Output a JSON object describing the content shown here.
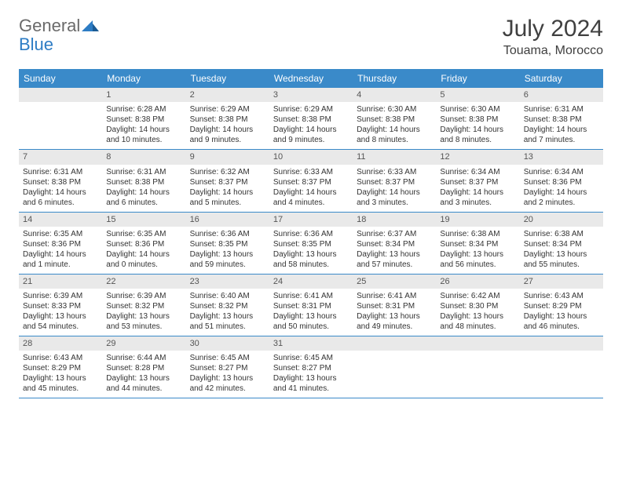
{
  "logo": {
    "text1": "General",
    "text2": "Blue"
  },
  "month_title": "July 2024",
  "location": "Touama, Morocco",
  "colors": {
    "header_bg": "#3a8ac9",
    "header_text": "#ffffff",
    "daynum_bg": "#e9e9e9",
    "border": "#3a8ac9",
    "logo_gray": "#6a6a6a",
    "logo_blue": "#2d7cc4"
  },
  "day_headers": [
    "Sunday",
    "Monday",
    "Tuesday",
    "Wednesday",
    "Thursday",
    "Friday",
    "Saturday"
  ],
  "weeks": [
    [
      {
        "num": "",
        "sunrise": "",
        "sunset": "",
        "daylight": ""
      },
      {
        "num": "1",
        "sunrise": "Sunrise: 6:28 AM",
        "sunset": "Sunset: 8:38 PM",
        "daylight": "Daylight: 14 hours and 10 minutes."
      },
      {
        "num": "2",
        "sunrise": "Sunrise: 6:29 AM",
        "sunset": "Sunset: 8:38 PM",
        "daylight": "Daylight: 14 hours and 9 minutes."
      },
      {
        "num": "3",
        "sunrise": "Sunrise: 6:29 AM",
        "sunset": "Sunset: 8:38 PM",
        "daylight": "Daylight: 14 hours and 9 minutes."
      },
      {
        "num": "4",
        "sunrise": "Sunrise: 6:30 AM",
        "sunset": "Sunset: 8:38 PM",
        "daylight": "Daylight: 14 hours and 8 minutes."
      },
      {
        "num": "5",
        "sunrise": "Sunrise: 6:30 AM",
        "sunset": "Sunset: 8:38 PM",
        "daylight": "Daylight: 14 hours and 8 minutes."
      },
      {
        "num": "6",
        "sunrise": "Sunrise: 6:31 AM",
        "sunset": "Sunset: 8:38 PM",
        "daylight": "Daylight: 14 hours and 7 minutes."
      }
    ],
    [
      {
        "num": "7",
        "sunrise": "Sunrise: 6:31 AM",
        "sunset": "Sunset: 8:38 PM",
        "daylight": "Daylight: 14 hours and 6 minutes."
      },
      {
        "num": "8",
        "sunrise": "Sunrise: 6:31 AM",
        "sunset": "Sunset: 8:38 PM",
        "daylight": "Daylight: 14 hours and 6 minutes."
      },
      {
        "num": "9",
        "sunrise": "Sunrise: 6:32 AM",
        "sunset": "Sunset: 8:37 PM",
        "daylight": "Daylight: 14 hours and 5 minutes."
      },
      {
        "num": "10",
        "sunrise": "Sunrise: 6:33 AM",
        "sunset": "Sunset: 8:37 PM",
        "daylight": "Daylight: 14 hours and 4 minutes."
      },
      {
        "num": "11",
        "sunrise": "Sunrise: 6:33 AM",
        "sunset": "Sunset: 8:37 PM",
        "daylight": "Daylight: 14 hours and 3 minutes."
      },
      {
        "num": "12",
        "sunrise": "Sunrise: 6:34 AM",
        "sunset": "Sunset: 8:37 PM",
        "daylight": "Daylight: 14 hours and 3 minutes."
      },
      {
        "num": "13",
        "sunrise": "Sunrise: 6:34 AM",
        "sunset": "Sunset: 8:36 PM",
        "daylight": "Daylight: 14 hours and 2 minutes."
      }
    ],
    [
      {
        "num": "14",
        "sunrise": "Sunrise: 6:35 AM",
        "sunset": "Sunset: 8:36 PM",
        "daylight": "Daylight: 14 hours and 1 minute."
      },
      {
        "num": "15",
        "sunrise": "Sunrise: 6:35 AM",
        "sunset": "Sunset: 8:36 PM",
        "daylight": "Daylight: 14 hours and 0 minutes."
      },
      {
        "num": "16",
        "sunrise": "Sunrise: 6:36 AM",
        "sunset": "Sunset: 8:35 PM",
        "daylight": "Daylight: 13 hours and 59 minutes."
      },
      {
        "num": "17",
        "sunrise": "Sunrise: 6:36 AM",
        "sunset": "Sunset: 8:35 PM",
        "daylight": "Daylight: 13 hours and 58 minutes."
      },
      {
        "num": "18",
        "sunrise": "Sunrise: 6:37 AM",
        "sunset": "Sunset: 8:34 PM",
        "daylight": "Daylight: 13 hours and 57 minutes."
      },
      {
        "num": "19",
        "sunrise": "Sunrise: 6:38 AM",
        "sunset": "Sunset: 8:34 PM",
        "daylight": "Daylight: 13 hours and 56 minutes."
      },
      {
        "num": "20",
        "sunrise": "Sunrise: 6:38 AM",
        "sunset": "Sunset: 8:34 PM",
        "daylight": "Daylight: 13 hours and 55 minutes."
      }
    ],
    [
      {
        "num": "21",
        "sunrise": "Sunrise: 6:39 AM",
        "sunset": "Sunset: 8:33 PM",
        "daylight": "Daylight: 13 hours and 54 minutes."
      },
      {
        "num": "22",
        "sunrise": "Sunrise: 6:39 AM",
        "sunset": "Sunset: 8:32 PM",
        "daylight": "Daylight: 13 hours and 53 minutes."
      },
      {
        "num": "23",
        "sunrise": "Sunrise: 6:40 AM",
        "sunset": "Sunset: 8:32 PM",
        "daylight": "Daylight: 13 hours and 51 minutes."
      },
      {
        "num": "24",
        "sunrise": "Sunrise: 6:41 AM",
        "sunset": "Sunset: 8:31 PM",
        "daylight": "Daylight: 13 hours and 50 minutes."
      },
      {
        "num": "25",
        "sunrise": "Sunrise: 6:41 AM",
        "sunset": "Sunset: 8:31 PM",
        "daylight": "Daylight: 13 hours and 49 minutes."
      },
      {
        "num": "26",
        "sunrise": "Sunrise: 6:42 AM",
        "sunset": "Sunset: 8:30 PM",
        "daylight": "Daylight: 13 hours and 48 minutes."
      },
      {
        "num": "27",
        "sunrise": "Sunrise: 6:43 AM",
        "sunset": "Sunset: 8:29 PM",
        "daylight": "Daylight: 13 hours and 46 minutes."
      }
    ],
    [
      {
        "num": "28",
        "sunrise": "Sunrise: 6:43 AM",
        "sunset": "Sunset: 8:29 PM",
        "daylight": "Daylight: 13 hours and 45 minutes."
      },
      {
        "num": "29",
        "sunrise": "Sunrise: 6:44 AM",
        "sunset": "Sunset: 8:28 PM",
        "daylight": "Daylight: 13 hours and 44 minutes."
      },
      {
        "num": "30",
        "sunrise": "Sunrise: 6:45 AM",
        "sunset": "Sunset: 8:27 PM",
        "daylight": "Daylight: 13 hours and 42 minutes."
      },
      {
        "num": "31",
        "sunrise": "Sunrise: 6:45 AM",
        "sunset": "Sunset: 8:27 PM",
        "daylight": "Daylight: 13 hours and 41 minutes."
      },
      {
        "num": "",
        "sunrise": "",
        "sunset": "",
        "daylight": ""
      },
      {
        "num": "",
        "sunrise": "",
        "sunset": "",
        "daylight": ""
      },
      {
        "num": "",
        "sunrise": "",
        "sunset": "",
        "daylight": ""
      }
    ]
  ]
}
